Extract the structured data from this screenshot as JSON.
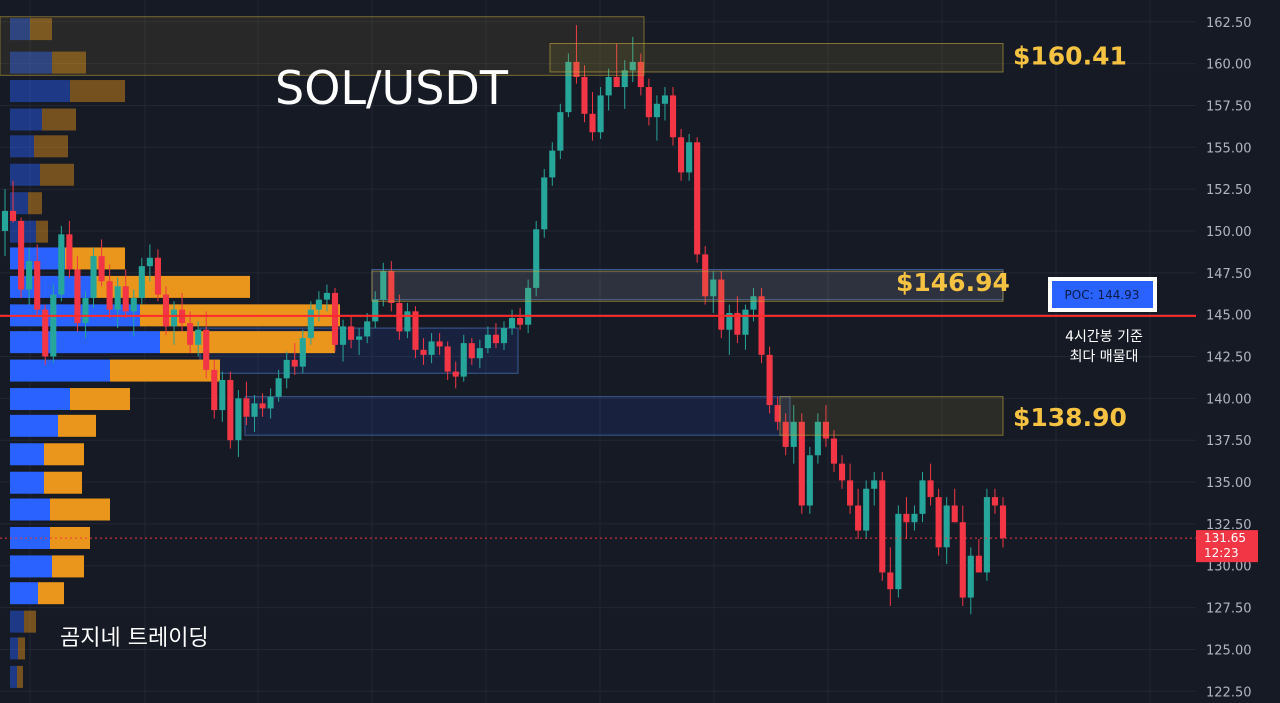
{
  "chart_data": {
    "type": "candlestick",
    "title": "SOL/USDT",
    "watermark": "곰지네 트레이딩",
    "y_axis": {
      "ylim": [
        121.8,
        163.8
      ],
      "ticks": [
        "162.50",
        "160.00",
        "157.50",
        "155.00",
        "152.50",
        "150.00",
        "147.50",
        "145.00",
        "142.50",
        "140.00",
        "137.50",
        "135.00",
        "132.50",
        "130.00",
        "127.50",
        "125.00",
        "122.50"
      ]
    },
    "levels": [
      {
        "label": "$160.41",
        "low": 159.5,
        "high": 161.2
      },
      {
        "label": "$146.94",
        "low": 145.8,
        "high": 147.6
      },
      {
        "label": "$138.90",
        "low": 137.8,
        "high": 140.1
      }
    ],
    "poc": {
      "label": "POC: 144.93",
      "price": 144.93,
      "note_line1": "4시간봉 기준",
      "note_line2": "최다 매물대"
    },
    "last_price": {
      "price": 131.65,
      "label": "131.65",
      "timer": "12:23"
    },
    "blue_zones": [
      {
        "low": 145.9,
        "high": 147.7
      },
      {
        "low": 141.5,
        "high": 144.2
      },
      {
        "low": 137.8,
        "high": 140.1
      }
    ],
    "volume_profile": [
      {
        "price": 162.0,
        "up": 20,
        "down": 22
      },
      {
        "price": 160.0,
        "up": 42,
        "down": 34
      },
      {
        "price": 158.3,
        "up": 60,
        "down": 55
      },
      {
        "price": 156.6,
        "up": 32,
        "down": 34
      },
      {
        "price": 155.0,
        "up": 24,
        "down": 34
      },
      {
        "price": 153.3,
        "up": 30,
        "down": 34
      },
      {
        "price": 151.6,
        "up": 18,
        "down": 14
      },
      {
        "price": 149.9,
        "up": 26,
        "down": 12
      },
      {
        "price": 148.3,
        "up": 55,
        "down": 60
      },
      {
        "price": 146.6,
        "up": 85,
        "down": 155
      },
      {
        "price": 144.9,
        "up": 130,
        "down": 200
      },
      {
        "price": 143.3,
        "up": 150,
        "down": 175
      },
      {
        "price": 141.6,
        "up": 100,
        "down": 110
      },
      {
        "price": 139.9,
        "up": 60,
        "down": 60
      },
      {
        "price": 138.3,
        "up": 48,
        "down": 38
      },
      {
        "price": 136.6,
        "up": 34,
        "down": 40
      },
      {
        "price": 134.9,
        "up": 34,
        "down": 38
      },
      {
        "price": 133.3,
        "up": 40,
        "down": 60
      },
      {
        "price": 131.6,
        "up": 40,
        "down": 40
      },
      {
        "price": 129.9,
        "up": 42,
        "down": 32
      },
      {
        "price": 128.3,
        "up": 28,
        "down": 26
      },
      {
        "price": 126.6,
        "up": 14,
        "down": 12
      },
      {
        "price": 125.0,
        "up": 8,
        "down": 7
      },
      {
        "price": 123.3,
        "up": 7,
        "down": 6
      }
    ],
    "candles": [
      [
        150.0,
        152.5,
        148.5,
        151.2
      ],
      [
        151.2,
        153.0,
        150.5,
        150.6
      ],
      [
        150.6,
        150.8,
        146.0,
        146.5
      ],
      [
        146.5,
        149.0,
        145.6,
        148.2
      ],
      [
        148.2,
        149.2,
        145.0,
        145.3
      ],
      [
        145.3,
        145.6,
        142.0,
        142.5
      ],
      [
        142.5,
        146.8,
        142.1,
        146.2
      ],
      [
        146.2,
        150.3,
        145.8,
        149.8
      ],
      [
        149.8,
        150.6,
        147.2,
        147.7
      ],
      [
        147.7,
        148.5,
        144.0,
        144.5
      ],
      [
        144.5,
        146.4,
        143.6,
        146.0
      ],
      [
        146.0,
        149.0,
        145.4,
        148.5
      ],
      [
        148.5,
        149.5,
        146.7,
        147.0
      ],
      [
        147.0,
        148.0,
        144.8,
        145.3
      ],
      [
        145.3,
        147.2,
        144.2,
        146.7
      ],
      [
        146.7,
        147.7,
        144.8,
        145.2
      ],
      [
        145.2,
        146.5,
        143.7,
        146.0
      ],
      [
        146.0,
        148.4,
        145.6,
        147.9
      ],
      [
        147.9,
        149.2,
        147.0,
        148.4
      ],
      [
        148.4,
        148.9,
        145.8,
        146.2
      ],
      [
        146.2,
        146.7,
        143.8,
        144.3
      ],
      [
        144.3,
        145.8,
        143.2,
        145.3
      ],
      [
        145.3,
        146.3,
        144.0,
        144.5
      ],
      [
        144.5,
        145.2,
        142.7,
        143.2
      ],
      [
        143.2,
        144.6,
        142.5,
        144.1
      ],
      [
        144.1,
        145.2,
        141.2,
        141.7
      ],
      [
        141.7,
        142.3,
        138.8,
        139.3
      ],
      [
        139.3,
        141.6,
        138.6,
        141.1
      ],
      [
        141.1,
        141.6,
        137.0,
        137.5
      ],
      [
        137.5,
        140.5,
        136.5,
        140.0
      ],
      [
        140.0,
        141.0,
        138.4,
        138.9
      ],
      [
        138.9,
        140.2,
        138.0,
        139.7
      ],
      [
        139.7,
        140.3,
        138.9,
        139.4
      ],
      [
        139.4,
        140.6,
        138.8,
        140.1
      ],
      [
        140.1,
        141.7,
        139.8,
        141.2
      ],
      [
        141.2,
        142.8,
        140.6,
        142.3
      ],
      [
        142.3,
        143.3,
        141.4,
        141.9
      ],
      [
        141.9,
        144.1,
        141.5,
        143.6
      ],
      [
        143.6,
        145.8,
        143.2,
        145.3
      ],
      [
        145.3,
        146.4,
        144.6,
        145.9
      ],
      [
        145.9,
        146.8,
        145.2,
        146.3
      ],
      [
        146.3,
        146.6,
        142.8,
        143.2
      ],
      [
        143.2,
        144.7,
        142.2,
        144.3
      ],
      [
        144.3,
        144.9,
        143.0,
        143.5
      ],
      [
        143.5,
        144.2,
        142.6,
        143.7
      ],
      [
        143.7,
        145.1,
        143.3,
        144.6
      ],
      [
        144.6,
        146.4,
        144.2,
        145.9
      ],
      [
        145.9,
        148.1,
        145.5,
        147.6
      ],
      [
        147.6,
        148.2,
        145.2,
        145.7
      ],
      [
        145.7,
        146.2,
        143.5,
        144.0
      ],
      [
        144.0,
        145.7,
        143.6,
        145.2
      ],
      [
        145.2,
        145.5,
        142.4,
        142.9
      ],
      [
        142.9,
        143.6,
        142.0,
        142.6
      ],
      [
        142.6,
        143.9,
        142.1,
        143.4
      ],
      [
        143.4,
        143.9,
        142.6,
        143.1
      ],
      [
        143.1,
        143.4,
        141.1,
        141.6
      ],
      [
        141.6,
        142.2,
        140.6,
        141.3
      ],
      [
        141.3,
        143.8,
        141.0,
        143.3
      ],
      [
        143.3,
        143.6,
        142.0,
        142.4
      ],
      [
        142.4,
        143.5,
        141.8,
        143.0
      ],
      [
        143.0,
        144.3,
        142.7,
        143.8
      ],
      [
        143.8,
        144.5,
        143.0,
        143.3
      ],
      [
        143.3,
        144.6,
        142.9,
        144.2
      ],
      [
        144.2,
        145.3,
        143.8,
        144.8
      ],
      [
        144.8,
        145.4,
        144.1,
        144.4
      ],
      [
        144.4,
        147.1,
        143.9,
        146.6
      ],
      [
        146.6,
        150.6,
        146.1,
        150.1
      ],
      [
        150.1,
        153.7,
        149.6,
        153.2
      ],
      [
        153.2,
        155.3,
        152.7,
        154.8
      ],
      [
        154.8,
        157.6,
        154.3,
        157.1
      ],
      [
        157.1,
        160.6,
        156.8,
        160.1
      ],
      [
        160.1,
        162.3,
        158.8,
        159.2
      ],
      [
        159.2,
        159.9,
        156.5,
        157.0
      ],
      [
        157.0,
        158.3,
        155.4,
        155.9
      ],
      [
        155.9,
        158.6,
        155.5,
        158.1
      ],
      [
        158.1,
        159.7,
        157.2,
        159.2
      ],
      [
        159.2,
        161.2,
        158.6,
        158.6
      ],
      [
        158.6,
        160.2,
        157.3,
        159.6
      ],
      [
        159.6,
        161.6,
        158.9,
        160.1
      ],
      [
        160.1,
        160.6,
        158.1,
        158.6
      ],
      [
        158.6,
        159.1,
        156.3,
        156.8
      ],
      [
        156.8,
        158.1,
        155.4,
        157.6
      ],
      [
        157.6,
        158.6,
        156.6,
        158.1
      ],
      [
        158.1,
        158.6,
        155.1,
        155.6
      ],
      [
        155.6,
        156.1,
        153.0,
        153.5
      ],
      [
        153.5,
        155.8,
        153.0,
        155.3
      ],
      [
        155.3,
        155.6,
        148.1,
        148.6
      ],
      [
        148.6,
        149.1,
        145.6,
        146.1
      ],
      [
        146.1,
        147.6,
        145.1,
        147.1
      ],
      [
        147.1,
        147.6,
        143.6,
        144.1
      ],
      [
        144.1,
        145.6,
        142.6,
        145.1
      ],
      [
        145.1,
        146.1,
        143.3,
        143.8
      ],
      [
        143.8,
        145.6,
        142.9,
        145.3
      ],
      [
        145.3,
        146.6,
        144.6,
        146.1
      ],
      [
        146.1,
        146.6,
        142.1,
        142.6
      ],
      [
        142.6,
        143.1,
        139.1,
        139.6
      ],
      [
        139.6,
        140.1,
        138.1,
        138.6
      ],
      [
        138.6,
        139.1,
        136.6,
        137.1
      ],
      [
        137.1,
        139.6,
        136.1,
        138.6
      ],
      [
        138.6,
        139.1,
        133.1,
        133.6
      ],
      [
        133.6,
        137.1,
        133.1,
        136.6
      ],
      [
        136.6,
        139.1,
        136.1,
        138.6
      ],
      [
        138.6,
        139.6,
        137.1,
        137.6
      ],
      [
        137.6,
        138.1,
        135.6,
        136.1
      ],
      [
        136.1,
        136.6,
        134.6,
        135.1
      ],
      [
        135.1,
        136.1,
        133.1,
        133.6
      ],
      [
        133.6,
        134.6,
        131.6,
        132.1
      ],
      [
        132.1,
        135.1,
        131.6,
        134.6
      ],
      [
        134.6,
        135.6,
        133.6,
        135.1
      ],
      [
        135.1,
        135.6,
        129.1,
        129.6
      ],
      [
        129.6,
        131.1,
        127.6,
        128.6
      ],
      [
        128.6,
        133.6,
        128.1,
        133.1
      ],
      [
        133.1,
        134.1,
        131.6,
        132.6
      ],
      [
        132.6,
        133.6,
        132.1,
        133.1
      ],
      [
        133.1,
        135.6,
        132.6,
        135.1
      ],
      [
        135.1,
        136.1,
        133.6,
        134.1
      ],
      [
        134.1,
        134.6,
        130.6,
        131.1
      ],
      [
        131.1,
        134.1,
        130.1,
        133.6
      ],
      [
        133.6,
        134.6,
        132.6,
        132.6
      ],
      [
        132.6,
        133.6,
        127.6,
        128.1
      ],
      [
        128.1,
        131.1,
        127.1,
        130.6
      ],
      [
        130.6,
        131.6,
        129.6,
        129.6
      ],
      [
        129.6,
        134.6,
        129.1,
        134.1
      ],
      [
        134.1,
        134.6,
        133.1,
        133.6
      ],
      [
        133.6,
        134.1,
        131.1,
        131.65
      ]
    ]
  }
}
